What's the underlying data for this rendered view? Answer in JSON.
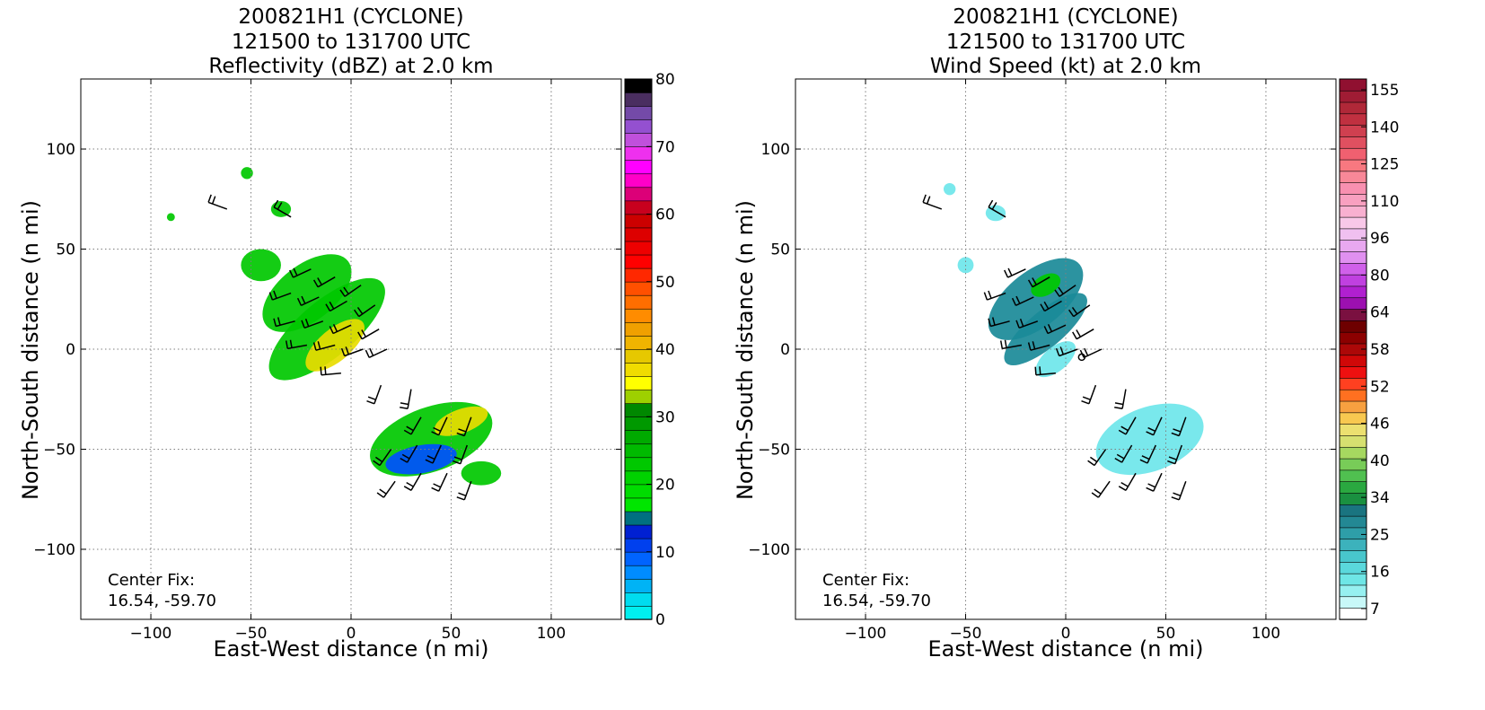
{
  "colors": {
    "reflectivity_scale": [
      "#00efef",
      "#00dcef",
      "#00b3f5",
      "#008cff",
      "#0064ff",
      "#0040ee",
      "#0020d2",
      "#007080",
      "#00e600",
      "#00dc00",
      "#00d200",
      "#00c800",
      "#00ba00",
      "#00aa00",
      "#009900",
      "#008800",
      "#9ed000",
      "#ffff00",
      "#f0dc00",
      "#e6c800",
      "#f0b400",
      "#f0a000",
      "#ff8c00",
      "#ff6e00",
      "#ff5000",
      "#ff2800",
      "#ff0000",
      "#ee0000",
      "#dd0000",
      "#cc0000",
      "#c8001e",
      "#dc0078",
      "#ff00c8",
      "#ff00ff",
      "#ee30ee",
      "#c050dc",
      "#9450d0",
      "#744aa8",
      "#4a2e60",
      "#000000"
    ],
    "wind_scale": [
      "#ffffff",
      "#c8f8f8",
      "#96f0f0",
      "#6ee6e6",
      "#5ad8dc",
      "#48c6cc",
      "#3cb2bc",
      "#2e9ea8",
      "#238894",
      "#1a7480",
      "#1a9040",
      "#2aa840",
      "#50c050",
      "#78cc58",
      "#a6d860",
      "#d6e070",
      "#ece070",
      "#f8c850",
      "#f7a040",
      "#ff7020",
      "#ff4020",
      "#ee1010",
      "#d00808",
      "#ac0808",
      "#8c0000",
      "#6e0000",
      "#7a1040",
      "#9c10b0",
      "#b020d0",
      "#c040e0",
      "#d060ea",
      "#e090f0",
      "#e8a8f0",
      "#f0c0f0",
      "#f8c8e8",
      "#f8b0d0",
      "#f8a0c0",
      "#f890b0",
      "#f88898",
      "#f87880",
      "#f06070",
      "#e05060",
      "#d04050",
      "#c03040",
      "#b02838",
      "#a01c34",
      "#901030"
    ],
    "green": "#00c800",
    "yellow": "#e8dc00",
    "blue": "#0050ff",
    "teal": "#1a8a98",
    "cyan": "#6ee6ea",
    "grid": "#7f7f7f"
  },
  "left_panel": {
    "title_line1": "200821H1 (CYCLONE)",
    "title_line2": "121500 to 131700 UTC",
    "title_line3": "Reflectivity (dBZ) at 2.0 km",
    "xlabel": "East-West distance (n mi)",
    "ylabel": "North-South distance (n mi)",
    "center_fix_label": "Center Fix:",
    "center_fix_value": "16.54, -59.70",
    "colorbar_ticks": [
      "0",
      "10",
      "20",
      "30",
      "40",
      "50",
      "60",
      "70",
      "80"
    ]
  },
  "right_panel": {
    "title_line1": "200821H1 (CYCLONE)",
    "title_line2": "121500 to 131700 UTC",
    "title_line3": "Wind Speed (kt) at 2.0 km",
    "xlabel": "East-West distance (n mi)",
    "ylabel": "North-South distance (n mi)",
    "center_fix_label": "Center Fix:",
    "center_fix_value": "16.54, -59.70",
    "colorbar_ticks": [
      "7",
      "16",
      "25",
      "34",
      "40",
      "46",
      "52",
      "58",
      "64",
      "80",
      "96",
      "110",
      "125",
      "140",
      "155"
    ]
  },
  "chart_data": [
    {
      "type": "heatmap",
      "title": "200821H1 (CYCLONE) 121500 to 131700 UTC Reflectivity (dBZ) at 2.0 km",
      "xlabel": "East-West distance (n mi)",
      "ylabel": "North-South distance (n mi)",
      "xlim": [
        -135,
        135
      ],
      "ylim": [
        -135,
        135
      ],
      "xticks": [
        -100,
        -50,
        0,
        50,
        100
      ],
      "yticks": [
        -100,
        -50,
        0,
        50,
        100
      ],
      "grid": true,
      "colorbar": {
        "label": "dBZ",
        "min": 0,
        "max": 80,
        "step": 2,
        "ticks": [
          0,
          10,
          20,
          30,
          40,
          50,
          60,
          70,
          80
        ]
      },
      "center_fix": [
        16.54,
        -59.7
      ],
      "field_blobs": [
        {
          "x": -22,
          "y": 28,
          "rx": 26,
          "ry": 14,
          "angle": -38,
          "color": "green"
        },
        {
          "x": -12,
          "y": 10,
          "rx": 36,
          "ry": 14,
          "angle": -40,
          "color": "green"
        },
        {
          "x": -8,
          "y": 2,
          "rx": 18,
          "ry": 8,
          "angle": -40,
          "color": "yellow"
        },
        {
          "x": 40,
          "y": -45,
          "rx": 32,
          "ry": 16,
          "angle": -20,
          "color": "green"
        },
        {
          "x": 35,
          "y": -55,
          "rx": 18,
          "ry": 7,
          "angle": -10,
          "color": "blue"
        },
        {
          "x": 55,
          "y": -36,
          "rx": 14,
          "ry": 6,
          "angle": -20,
          "color": "yellow"
        },
        {
          "x": 65,
          "y": -62,
          "rx": 10,
          "ry": 6,
          "angle": 0,
          "color": "green"
        },
        {
          "x": -45,
          "y": 42,
          "rx": 10,
          "ry": 8,
          "angle": 0,
          "color": "green"
        },
        {
          "x": -35,
          "y": 70,
          "rx": 5,
          "ry": 4,
          "angle": 0,
          "color": "green"
        },
        {
          "x": -52,
          "y": 88,
          "rx": 3,
          "ry": 3,
          "angle": 0,
          "color": "green"
        },
        {
          "x": -90,
          "y": 66,
          "rx": 2,
          "ry": 2,
          "angle": 0,
          "color": "green"
        }
      ]
    },
    {
      "type": "heatmap",
      "title": "200821H1 (CYCLONE) 121500 to 131700 UTC Wind Speed (kt) at 2.0 km",
      "xlabel": "East-West distance (n mi)",
      "ylabel": "North-South distance (n mi)",
      "xlim": [
        -135,
        135
      ],
      "ylim": [
        -135,
        135
      ],
      "xticks": [
        -100,
        -50,
        0,
        50,
        100
      ],
      "yticks": [
        -100,
        -50,
        0,
        50,
        100
      ],
      "grid": true,
      "colorbar": {
        "label": "kt",
        "ticks": [
          7,
          16,
          25,
          34,
          40,
          46,
          52,
          58,
          64,
          80,
          96,
          110,
          125,
          140,
          155
        ]
      },
      "center_fix": [
        16.54,
        -59.7
      ],
      "field_blobs": [
        {
          "x": -15,
          "y": 25,
          "rx": 28,
          "ry": 14,
          "angle": -38,
          "color": "teal"
        },
        {
          "x": -10,
          "y": 10,
          "rx": 26,
          "ry": 9,
          "angle": -40,
          "color": "teal"
        },
        {
          "x": -10,
          "y": 32,
          "rx": 8,
          "ry": 5,
          "angle": -30,
          "color": "green"
        },
        {
          "x": 42,
          "y": -45,
          "rx": 28,
          "ry": 16,
          "angle": -20,
          "color": "cyan"
        },
        {
          "x": -5,
          "y": -5,
          "rx": 12,
          "ry": 6,
          "angle": -40,
          "color": "cyan"
        },
        {
          "x": -50,
          "y": 42,
          "rx": 4,
          "ry": 4,
          "angle": 0,
          "color": "cyan"
        },
        {
          "x": -35,
          "y": 68,
          "rx": 5,
          "ry": 4,
          "angle": 0,
          "color": "cyan"
        },
        {
          "x": -58,
          "y": 80,
          "rx": 3,
          "ry": 3,
          "angle": 0,
          "color": "cyan"
        }
      ],
      "calm_marker": [
        8,
        -4
      ]
    }
  ],
  "wind_barbs": [
    {
      "x": -62,
      "y": 70,
      "dir": 290
    },
    {
      "x": -30,
      "y": 66,
      "dir": 300
    },
    {
      "x": -20,
      "y": 40,
      "dir": 245
    },
    {
      "x": -8,
      "y": 36,
      "dir": 240
    },
    {
      "x": 5,
      "y": 32,
      "dir": 235
    },
    {
      "x": -30,
      "y": 28,
      "dir": 250
    },
    {
      "x": -16,
      "y": 26,
      "dir": 245
    },
    {
      "x": -2,
      "y": 24,
      "dir": 240
    },
    {
      "x": 12,
      "y": 22,
      "dir": 235
    },
    {
      "x": -28,
      "y": 14,
      "dir": 255
    },
    {
      "x": -14,
      "y": 14,
      "dir": 250
    },
    {
      "x": 0,
      "y": 12,
      "dir": 245
    },
    {
      "x": 14,
      "y": 10,
      "dir": 240
    },
    {
      "x": -22,
      "y": 2,
      "dir": 260
    },
    {
      "x": -8,
      "y": 2,
      "dir": 255
    },
    {
      "x": 6,
      "y": 0,
      "dir": 250
    },
    {
      "x": 18,
      "y": 0,
      "dir": 245
    },
    {
      "x": -5,
      "y": -12,
      "dir": 265
    },
    {
      "x": 15,
      "y": -18,
      "dir": 200
    },
    {
      "x": 30,
      "y": -20,
      "dir": 190
    },
    {
      "x": 35,
      "y": -34,
      "dir": 210
    },
    {
      "x": 48,
      "y": -34,
      "dir": 205
    },
    {
      "x": 60,
      "y": -34,
      "dir": 200
    },
    {
      "x": 20,
      "y": -50,
      "dir": 215
    },
    {
      "x": 33,
      "y": -48,
      "dir": 210
    },
    {
      "x": 45,
      "y": -48,
      "dir": 205
    },
    {
      "x": 58,
      "y": -48,
      "dir": 200
    },
    {
      "x": 22,
      "y": -66,
      "dir": 215
    },
    {
      "x": 35,
      "y": -62,
      "dir": 210
    },
    {
      "x": 48,
      "y": -62,
      "dir": 205
    },
    {
      "x": 60,
      "y": -66,
      "dir": 200
    }
  ]
}
